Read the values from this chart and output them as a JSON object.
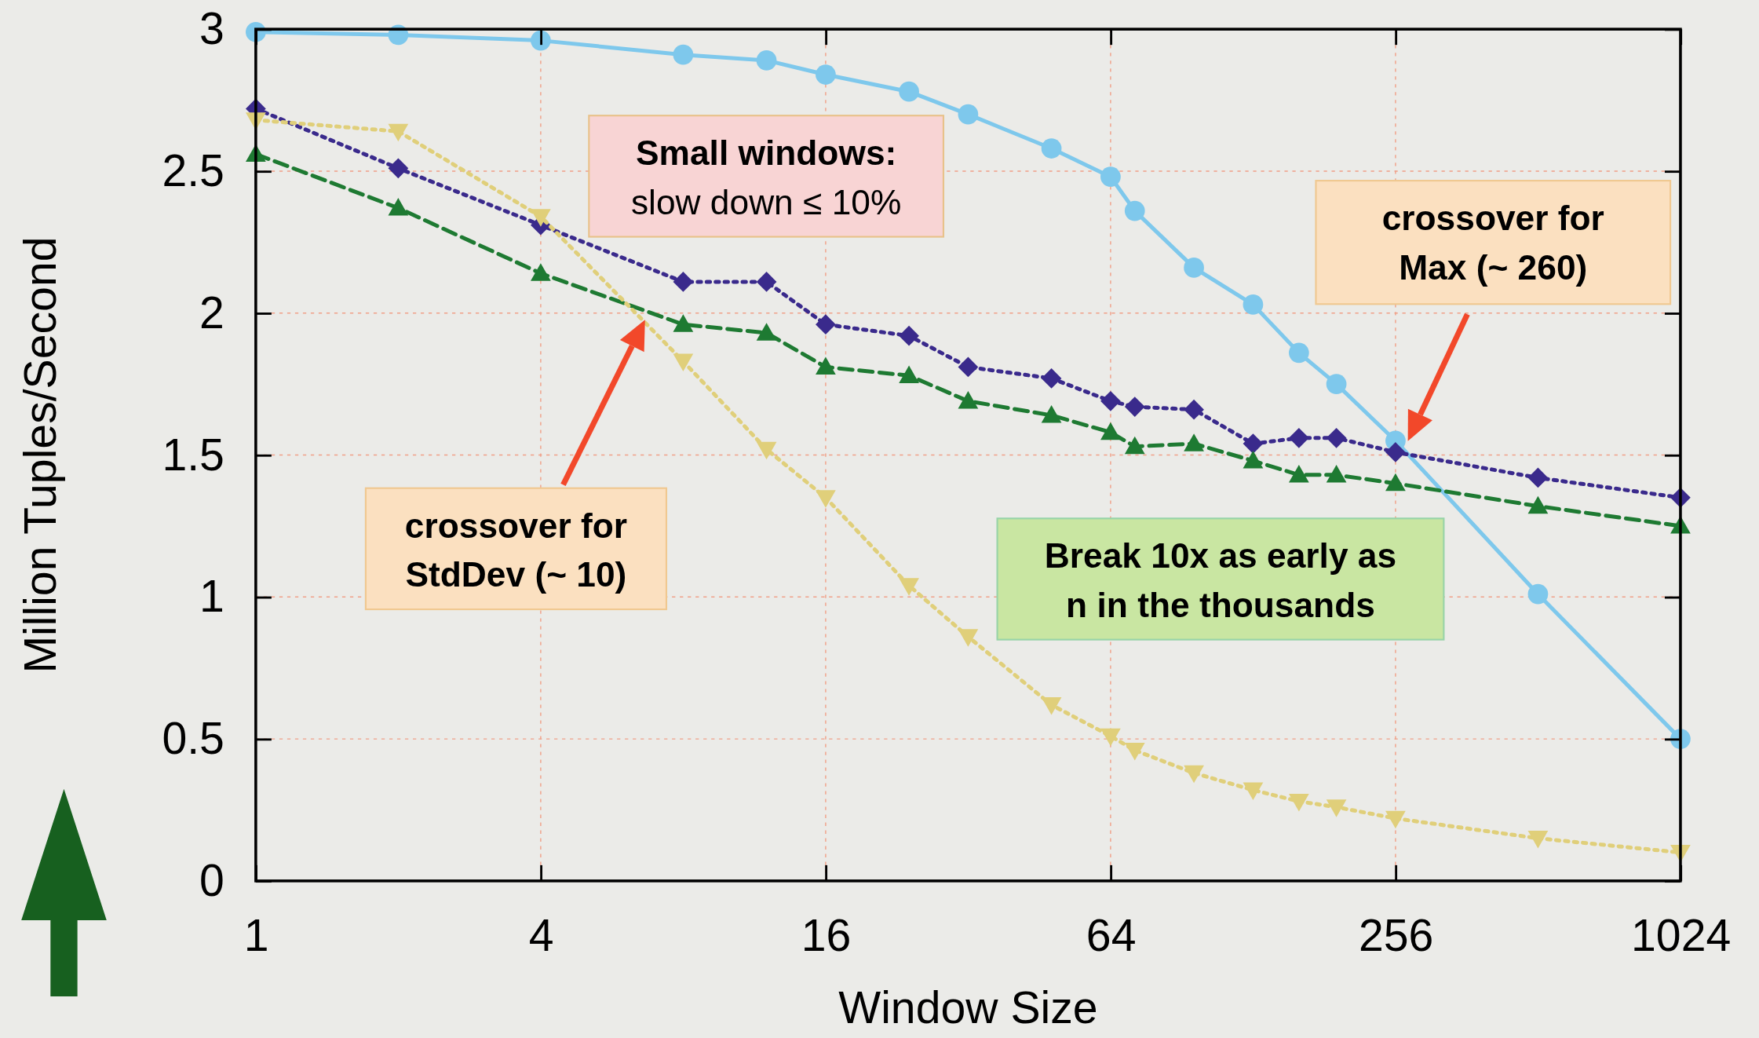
{
  "chart_data": {
    "type": "line",
    "xlabel": "Window Size",
    "ylabel": "Million Tuples/Second",
    "log": "x",
    "xlim": [
      1,
      1024
    ],
    "ylim": [
      0,
      3
    ],
    "xticks": [
      1,
      4,
      16,
      64,
      256,
      1024
    ],
    "yticks": [
      0,
      {
        "value": 0.5,
        "label": "0.5"
      },
      1,
      {
        "value": 1.5,
        "label": "1.5"
      },
      2,
      {
        "value": 2.5,
        "label": "2.5"
      },
      3
    ],
    "grid": true,
    "x": [
      1,
      2,
      4,
      8,
      12,
      16,
      24,
      32,
      48,
      64,
      72,
      96,
      128,
      160,
      192,
      256,
      512,
      1024
    ],
    "series": [
      {
        "color": "#7ec8ec",
        "line_style": "solid",
        "marker": "circle",
        "values": [
          2.99,
          2.98,
          2.96,
          2.91,
          2.89,
          2.84,
          2.78,
          2.7,
          2.58,
          2.48,
          2.36,
          2.16,
          2.03,
          1.86,
          1.75,
          1.55,
          1.01,
          0.5
        ]
      },
      {
        "color": "#3a2a8c",
        "line_style": "dotted",
        "marker": "diamond",
        "values": [
          2.72,
          2.51,
          2.31,
          2.11,
          2.11,
          1.96,
          1.92,
          1.81,
          1.77,
          1.69,
          1.67,
          1.66,
          1.54,
          1.56,
          1.56,
          1.51,
          1.42,
          1.35
        ]
      },
      {
        "color": "#1e7a32",
        "line_style": "dashed",
        "marker": "triangle",
        "values": [
          2.56,
          2.37,
          2.14,
          1.96,
          1.93,
          1.81,
          1.78,
          1.69,
          1.64,
          1.58,
          1.53,
          1.54,
          1.48,
          1.43,
          1.43,
          1.4,
          1.32,
          1.25
        ]
      },
      {
        "color": "#e0cf7a",
        "line_style": "dotted",
        "marker": "triangle-down",
        "values": [
          2.68,
          2.64,
          2.34,
          1.83,
          1.52,
          1.35,
          1.04,
          0.86,
          0.62,
          0.51,
          0.46,
          0.38,
          0.32,
          0.28,
          0.26,
          0.22,
          0.15,
          0.1
        ]
      }
    ],
    "annotations": [
      "Small windows:\nslow down ≤ 10%",
      "crossover for\nStdDev (~ 10)",
      "crossover for\nMax (~ 260)",
      "Break 10x as early as\nn in the thousands"
    ]
  }
}
